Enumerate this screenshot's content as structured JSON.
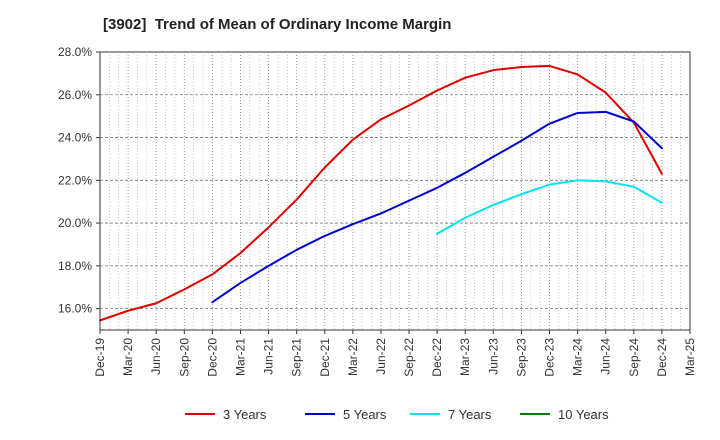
{
  "chart_data": {
    "type": "line",
    "title": "[3902]  Trend of Mean of Ordinary Income Margin",
    "xlabel": "",
    "ylabel": "",
    "ylim": [
      15.0,
      28.0
    ],
    "yticks": [
      "16.0%",
      "18.0%",
      "20.0%",
      "22.0%",
      "24.0%",
      "26.0%",
      "28.0%"
    ],
    "ytick_values": [
      16,
      18,
      20,
      22,
      24,
      26,
      28
    ],
    "x_categories": [
      "Dec-19",
      "Mar-20",
      "Jun-20",
      "Sep-20",
      "Dec-20",
      "Mar-21",
      "Jun-21",
      "Sep-21",
      "Dec-21",
      "Mar-22",
      "Jun-22",
      "Sep-22",
      "Dec-22",
      "Mar-23",
      "Jun-23",
      "Sep-23",
      "Dec-23",
      "Mar-24",
      "Jun-24",
      "Sep-24",
      "Dec-24",
      "Mar-25"
    ],
    "grid": true,
    "legend_position": "bottom",
    "series": [
      {
        "name": "3 Years",
        "color": "#e00000",
        "start_index": 0,
        "values": [
          15.45,
          15.9,
          16.25,
          16.9,
          17.6,
          18.6,
          19.8,
          21.1,
          22.6,
          23.9,
          24.85,
          25.5,
          26.2,
          26.8,
          27.15,
          27.3,
          27.35,
          26.95,
          26.1,
          24.7,
          22.3
        ]
      },
      {
        "name": "5 Years",
        "color": "#0000cc",
        "start_index": 4,
        "values": [
          16.3,
          17.2,
          18.0,
          18.75,
          19.4,
          19.95,
          20.45,
          21.05,
          21.65,
          22.35,
          23.1,
          23.85,
          24.65,
          25.15,
          25.2,
          24.75,
          23.5
        ]
      },
      {
        "name": "7 Years",
        "color": "#00e5ee",
        "start_index": 12,
        "values": [
          19.5,
          20.25,
          20.85,
          21.35,
          21.8,
          22.0,
          21.95,
          21.7,
          20.95
        ]
      },
      {
        "name": "10 Years",
        "color": "#008000",
        "start_index": 0,
        "values": []
      }
    ]
  }
}
